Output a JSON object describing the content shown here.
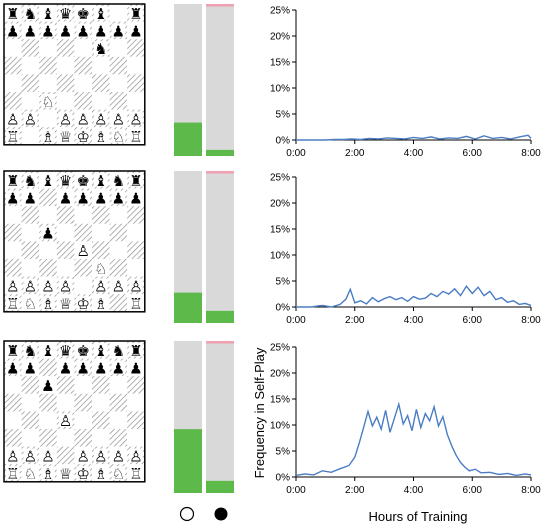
{
  "colors": {
    "white_win": "#5cb94a",
    "draw": "#d9d9d9",
    "black_win": "#f0a0b0",
    "series_line": "#4a7dc4",
    "board_border": "#000000"
  },
  "legend": {
    "white_label": "",
    "black_label": ""
  },
  "chart_data": [
    {
      "type": "line",
      "position": "row-1",
      "xlabel": "",
      "ylabel": "",
      "xticks": [
        "0:00",
        "2:00",
        "4:00",
        "6:00",
        "8:00"
      ],
      "yticks": [
        "0%",
        "5%",
        "10%",
        "15%",
        "20%",
        "25%"
      ],
      "xlim": [
        0,
        8
      ],
      "ylim": [
        0,
        25
      ],
      "series": [
        {
          "x": [
            0,
            0.5,
            1,
            1.3,
            1.6,
            1.9,
            2.2,
            2.5,
            2.8,
            3.1,
            3.4,
            3.7,
            4.0,
            4.3,
            4.6,
            4.9,
            5.2,
            5.5,
            5.8,
            6.1,
            6.4,
            6.7,
            7.0,
            7.3,
            7.6,
            7.9,
            8.0
          ],
          "y": [
            0,
            0,
            0,
            0.1,
            0.1,
            0.2,
            0.1,
            0.3,
            0.2,
            0.4,
            0.3,
            0.2,
            0.5,
            0.3,
            0.6,
            0.2,
            0.4,
            0.3,
            0.7,
            0.2,
            0.8,
            0.3,
            0.5,
            0.2,
            0.6,
            0.9,
            0.3
          ]
        }
      ],
      "bars": {
        "white": 22,
        "black": 4,
        "black_loss_top": 1
      },
      "board": [
        "rnbqkb.r",
        "pppppppp",
        ".....n..",
        "........",
        "........",
        "..N.....",
        "PP.PPPPP",
        "R.BQKBNR"
      ]
    },
    {
      "type": "line",
      "position": "row-2",
      "xlabel": "",
      "ylabel": "",
      "xticks": [
        "0:00",
        "2:00",
        "4:00",
        "6:00",
        "8:00"
      ],
      "yticks": [
        "0%",
        "5%",
        "10%",
        "15%",
        "20%",
        "25%"
      ],
      "xlim": [
        0,
        8
      ],
      "ylim": [
        0,
        25
      ],
      "series": [
        {
          "x": [
            0,
            0.5,
            0.9,
            1.2,
            1.5,
            1.7,
            1.85,
            2.0,
            2.2,
            2.4,
            2.6,
            2.8,
            3.0,
            3.2,
            3.4,
            3.6,
            3.8,
            4.0,
            4.2,
            4.4,
            4.6,
            4.8,
            5.0,
            5.2,
            5.4,
            5.6,
            5.8,
            6.0,
            6.2,
            6.4,
            6.6,
            6.8,
            7.0,
            7.2,
            7.4,
            7.6,
            7.8,
            8.0
          ],
          "y": [
            0,
            0,
            0.3,
            0,
            0.5,
            1.5,
            3.4,
            0.8,
            1.2,
            0.6,
            1.8,
            1.0,
            1.6,
            2.0,
            1.4,
            1.8,
            1.1,
            2.0,
            1.5,
            1.7,
            2.6,
            2.0,
            3.0,
            2.5,
            3.5,
            2.2,
            4.0,
            2.6,
            3.8,
            2.2,
            3.0,
            1.4,
            1.8,
            0.9,
            1.2,
            0.5,
            0.7,
            0.3
          ]
        }
      ],
      "bars": {
        "white": 20,
        "black": 8,
        "black_loss_top": 1
      },
      "board": [
        "rnbqkbnr",
        "pp.ppppp",
        "........",
        "..p.....",
        "....P...",
        ".....N..",
        "PPPP.PPP",
        "RNBQKB.R"
      ]
    },
    {
      "type": "line",
      "position": "row-3",
      "xlabel": "Hours of Training",
      "ylabel": "Frequency in Self-Play",
      "xticks": [
        "0:00",
        "2:00",
        "4:00",
        "6:00",
        "8:00"
      ],
      "yticks": [
        "0%",
        "5%",
        "10%",
        "15%",
        "20%",
        "25%"
      ],
      "xlim": [
        0,
        8
      ],
      "ylim": [
        0,
        25
      ],
      "series": [
        {
          "x": [
            0,
            0.3,
            0.6,
            0.9,
            1.2,
            1.5,
            1.8,
            2.0,
            2.15,
            2.3,
            2.45,
            2.6,
            2.75,
            2.9,
            3.05,
            3.2,
            3.35,
            3.5,
            3.65,
            3.8,
            3.95,
            4.1,
            4.25,
            4.4,
            4.55,
            4.7,
            4.85,
            5.0,
            5.15,
            5.3,
            5.45,
            5.6,
            5.75,
            5.9,
            6.1,
            6.3,
            6.6,
            6.9,
            7.2,
            7.5,
            7.8,
            8.0
          ],
          "y": [
            0.3,
            0.6,
            0.4,
            1.2,
            0.9,
            1.6,
            2.2,
            3.8,
            6.5,
            9.5,
            12.6,
            9.8,
            11.5,
            9.2,
            12.8,
            8.6,
            11.3,
            14.0,
            10.2,
            11.8,
            8.9,
            13.0,
            9.5,
            12.2,
            10.8,
            13.5,
            9.8,
            11.6,
            8.2,
            6.0,
            4.2,
            2.8,
            1.9,
            1.2,
            1.5,
            0.8,
            0.9,
            0.5,
            0.7,
            0.3,
            0.6,
            0.4
          ]
        }
      ],
      "bars": {
        "white": 42,
        "black": 8,
        "black_loss_top": 1
      },
      "board": [
        "rnbqkbnr",
        "pp.ppppp",
        "..p.....",
        "........",
        "...P....",
        "........",
        "PPP.PPPP",
        "RNBQKBNR"
      ]
    }
  ]
}
